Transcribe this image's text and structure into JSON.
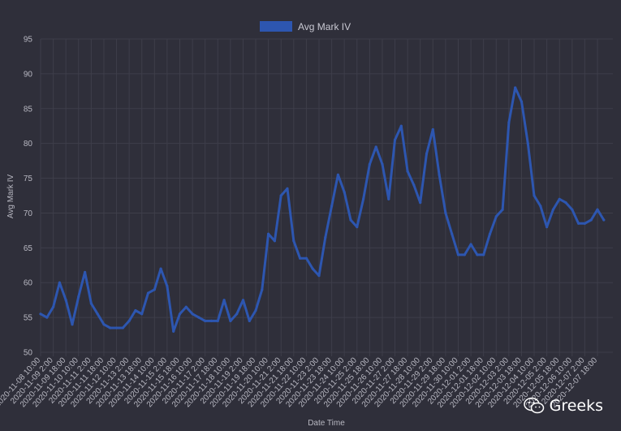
{
  "chart_data": {
    "type": "line",
    "title": "",
    "xlabel": "Date Time",
    "ylabel": "Avg Mark IV",
    "ylim": [
      50,
      95
    ],
    "yticks": [
      50,
      55,
      60,
      65,
      70,
      75,
      80,
      85,
      90,
      95
    ],
    "grid": true,
    "legend": "top-center",
    "colors": {
      "background": "#2f2f3a",
      "grid": "#3e3e4a",
      "series": "#2d56b0",
      "text": "#b8b8c2"
    },
    "x_tick_labels": [
      "2020-11-08 10:00",
      "2020-11-09 2:00",
      "2020-11-09 18:00",
      "2020-11-10 10:00",
      "2020-11-11 2:00",
      "2020-11-11 18:00",
      "2020-11-12 10:00",
      "2020-11-13 2:00",
      "2020-11-13 18:00",
      "2020-11-14 10:00",
      "2020-11-15 2:00",
      "2020-11-15 18:00",
      "2020-11-16 10:00",
      "2020-11-17 2:00",
      "2020-11-17 18:00",
      "2020-11-18 10:00",
      "2020-11-19 2:00",
      "2020-11-19 18:00",
      "2020-11-20 10:00",
      "2020-11-21 2:00",
      "2020-11-21 18:00",
      "2020-11-22 10:00",
      "2020-11-23 2:00",
      "2020-11-23 18:00",
      "2020-11-24 10:00",
      "2020-11-25 2:00",
      "2020-11-25 18:00",
      "2020-11-26 10:00",
      "2020-11-27 2:00",
      "2020-11-27 18:00",
      "2020-11-28 10:00",
      "2020-11-29 2:00",
      "2020-11-29 18:00",
      "2020-11-30 10:00",
      "2020-12-01 2:00",
      "2020-12-01 18:00",
      "2020-12-02 10:00",
      "2020-12-03 2:00",
      "2020-12-03 18:00",
      "2020-12-04 10:00",
      "2020-12-05 2:00",
      "2020-12-05 18:00",
      "2020-12-06 10:00",
      "2020-12-07 2:00",
      "2020-12-07 18:00"
    ],
    "series": [
      {
        "name": "Avg Mark IV",
        "x": [
          "2020-11-08 10:00",
          "2020-11-08 18:00",
          "2020-11-09 2:00",
          "2020-11-09 10:00",
          "2020-11-09 18:00",
          "2020-11-10 2:00",
          "2020-11-10 10:00",
          "2020-11-10 18:00",
          "2020-11-11 2:00",
          "2020-11-11 10:00",
          "2020-11-11 18:00",
          "2020-11-12 2:00",
          "2020-11-12 10:00",
          "2020-11-12 18:00",
          "2020-11-13 2:00",
          "2020-11-13 10:00",
          "2020-11-13 18:00",
          "2020-11-14 2:00",
          "2020-11-14 10:00",
          "2020-11-14 18:00",
          "2020-11-15 2:00",
          "2020-11-15 10:00",
          "2020-11-15 18:00",
          "2020-11-16 2:00",
          "2020-11-16 10:00",
          "2020-11-16 18:00",
          "2020-11-17 2:00",
          "2020-11-17 10:00",
          "2020-11-17 18:00",
          "2020-11-18 2:00",
          "2020-11-18 10:00",
          "2020-11-18 18:00",
          "2020-11-19 2:00",
          "2020-11-19 10:00",
          "2020-11-19 18:00",
          "2020-11-20 2:00",
          "2020-11-20 10:00",
          "2020-11-20 18:00",
          "2020-11-21 2:00",
          "2020-11-21 10:00",
          "2020-11-21 18:00",
          "2020-11-22 2:00",
          "2020-11-22 10:00",
          "2020-11-22 18:00",
          "2020-11-23 2:00",
          "2020-11-23 10:00",
          "2020-11-23 18:00",
          "2020-11-24 2:00",
          "2020-11-24 10:00",
          "2020-11-24 18:00",
          "2020-11-25 2:00",
          "2020-11-25 10:00",
          "2020-11-25 18:00",
          "2020-11-26 2:00",
          "2020-11-26 10:00",
          "2020-11-26 18:00",
          "2020-11-27 2:00",
          "2020-11-27 10:00",
          "2020-11-27 18:00",
          "2020-11-28 2:00",
          "2020-11-28 10:00",
          "2020-11-28 18:00",
          "2020-11-29 2:00",
          "2020-11-29 10:00",
          "2020-11-29 18:00",
          "2020-11-30 2:00",
          "2020-11-30 10:00",
          "2020-11-30 18:00",
          "2020-12-01 2:00",
          "2020-12-01 10:00",
          "2020-12-01 18:00",
          "2020-12-02 2:00",
          "2020-12-02 10:00",
          "2020-12-02 18:00",
          "2020-12-03 2:00",
          "2020-12-03 10:00",
          "2020-12-03 18:00",
          "2020-12-04 2:00",
          "2020-12-04 10:00",
          "2020-12-04 18:00",
          "2020-12-05 2:00",
          "2020-12-05 10:00",
          "2020-12-05 18:00",
          "2020-12-06 2:00",
          "2020-12-06 10:00",
          "2020-12-06 18:00",
          "2020-12-07 2:00",
          "2020-12-07 10:00",
          "2020-12-07 18:00",
          "2020-12-08 2:00"
        ],
        "values": [
          55.5,
          55,
          56.5,
          60,
          57.5,
          54,
          58,
          61.5,
          57,
          55.5,
          54,
          53.5,
          53.5,
          53.5,
          54.5,
          56,
          55.5,
          58.5,
          59,
          62,
          59.5,
          53,
          55.5,
          56.5,
          55.5,
          55,
          54.5,
          54.5,
          54.5,
          57.5,
          54.5,
          55.5,
          57.5,
          54.5,
          56,
          59,
          67,
          66,
          72.5,
          73.5,
          66,
          63.5,
          63.5,
          62,
          61,
          66.5,
          71,
          75.5,
          73,
          69,
          68,
          72,
          77,
          79.5,
          77,
          72,
          80.5,
          82.5,
          76,
          74,
          71.5,
          78.5,
          82,
          75.5,
          70,
          67,
          64,
          64,
          65.5,
          64,
          64,
          67,
          69.5,
          70.5,
          83,
          88,
          86,
          80,
          72.5,
          71,
          68,
          70.5,
          72,
          71.5,
          70.5,
          68.5,
          68.5,
          69,
          70.5,
          69
        ]
      }
    ]
  },
  "watermark": {
    "text": "Greeks"
  }
}
